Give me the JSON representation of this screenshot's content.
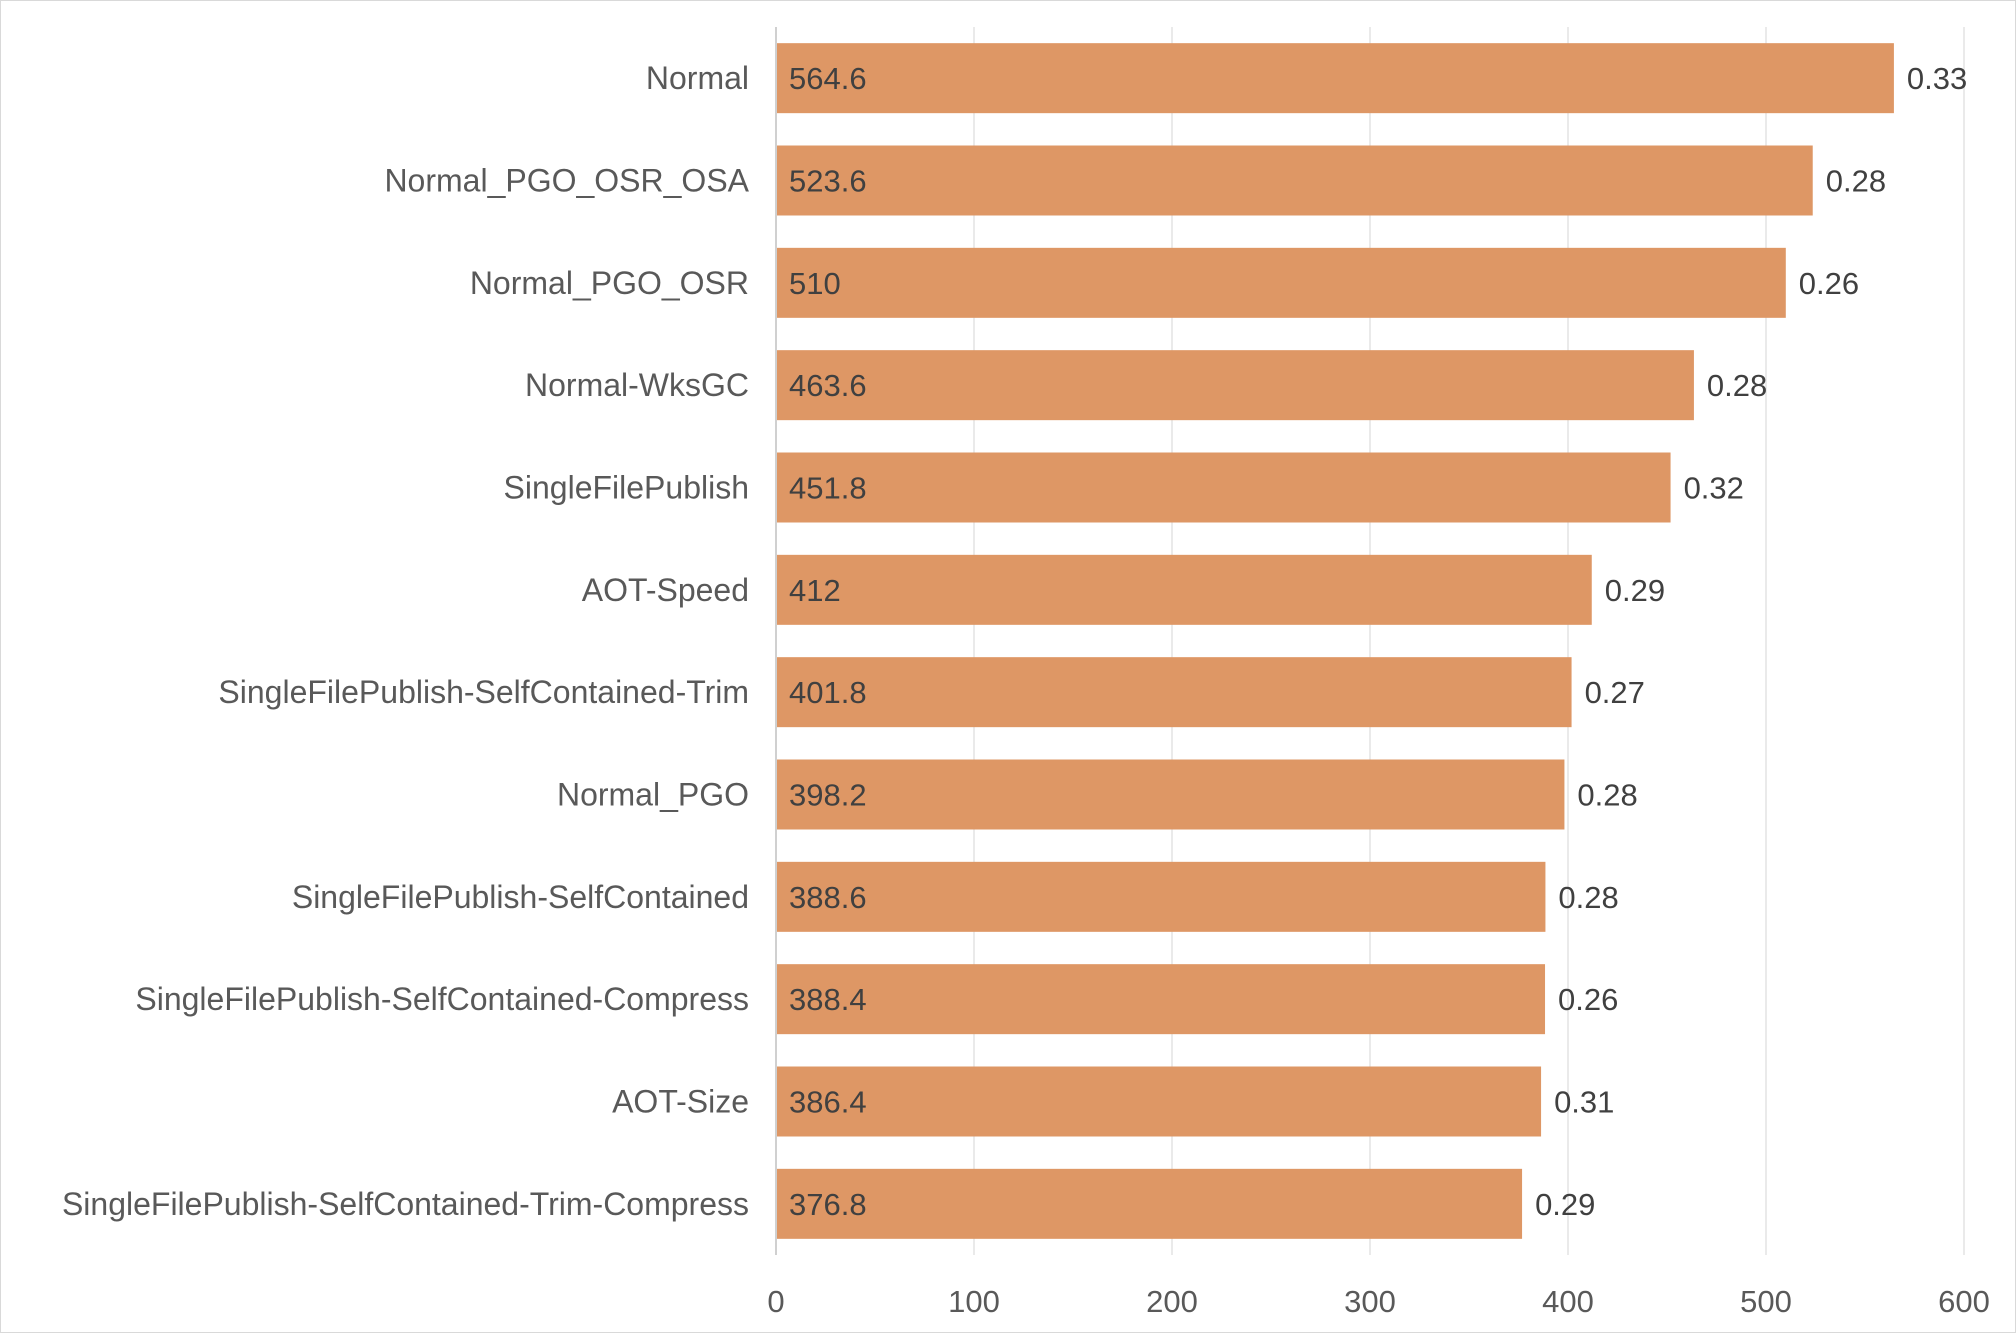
{
  "chart_data": {
    "type": "bar",
    "orientation": "horizontal",
    "title": "",
    "xlabel": "",
    "ylabel": "",
    "xlim": [
      0,
      600
    ],
    "x_ticks": [
      0,
      100,
      200,
      300,
      400,
      500,
      600
    ],
    "grid": true,
    "legend": "none",
    "bar_color": "#DE9765",
    "categories": [
      "Normal",
      "Normal_PGO_OSR_OSA",
      "Normal_PGO_OSR",
      "Normal-WksGC",
      "SingleFilePublish",
      "AOT-Speed",
      "SingleFilePublish-SelfContained-Trim",
      "Normal_PGO",
      "SingleFilePublish-SelfContained",
      "SingleFilePublish-SelfContained-Compress",
      "AOT-Size",
      "SingleFilePublish-SelfContained-Trim-Compress"
    ],
    "values": [
      564.6,
      523.6,
      510,
      463.6,
      451.8,
      412,
      401.8,
      398.2,
      388.6,
      388.4,
      386.4,
      376.8
    ],
    "value_labels": [
      "564.6",
      "523.6",
      "510",
      "463.6",
      "451.8",
      "412",
      "401.8",
      "398.2",
      "388.6",
      "388.4",
      "386.4",
      "376.8"
    ],
    "end_labels": [
      "0.33",
      "0.28",
      "0.26",
      "0.28",
      "0.32",
      "0.29",
      "0.27",
      "0.28",
      "0.28",
      "0.26",
      "0.31",
      "0.29"
    ]
  }
}
